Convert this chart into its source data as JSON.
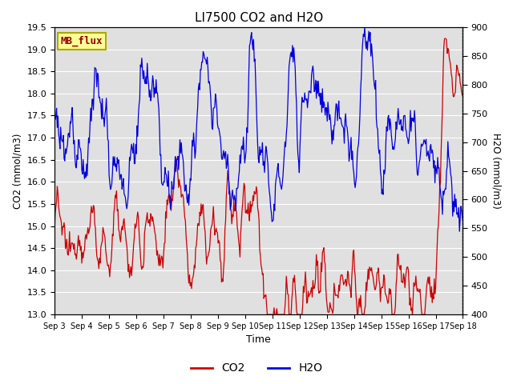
{
  "title": "LI7500 CO2 and H2O",
  "xlabel": "Time",
  "ylabel_left": "CO2 (mmol/m3)",
  "ylabel_right": "H2O (mmol/m3)",
  "co2_color": "#cc0000",
  "h2o_color": "#0000dd",
  "ylim_left": [
    13.0,
    19.5
  ],
  "ylim_right": [
    400,
    900
  ],
  "yticks_left": [
    13.0,
    13.5,
    14.0,
    14.5,
    15.0,
    15.5,
    16.0,
    16.5,
    17.0,
    17.5,
    18.0,
    18.5,
    19.0,
    19.5
  ],
  "yticks_right": [
    400,
    450,
    500,
    550,
    600,
    650,
    700,
    750,
    800,
    850,
    900
  ],
  "xtick_labels": [
    "Sep 3",
    "Sep 4",
    "Sep 5",
    "Sep 6",
    "Sep 7",
    "Sep 8",
    "Sep 9",
    "Sep 10",
    "Sep 11",
    "Sep 12",
    "Sep 13",
    "Sep 14",
    "Sep 15",
    "Sep 16",
    "Sep 17",
    "Sep 18"
  ],
  "label_box_text": "MB_flux",
  "label_box_facecolor": "#ffff99",
  "label_box_edgecolor": "#aaaa00",
  "label_box_textcolor": "#990000",
  "background_color": "#e0e0e0",
  "grid_color": "#ffffff",
  "title_fontsize": 11,
  "n_points": 600
}
